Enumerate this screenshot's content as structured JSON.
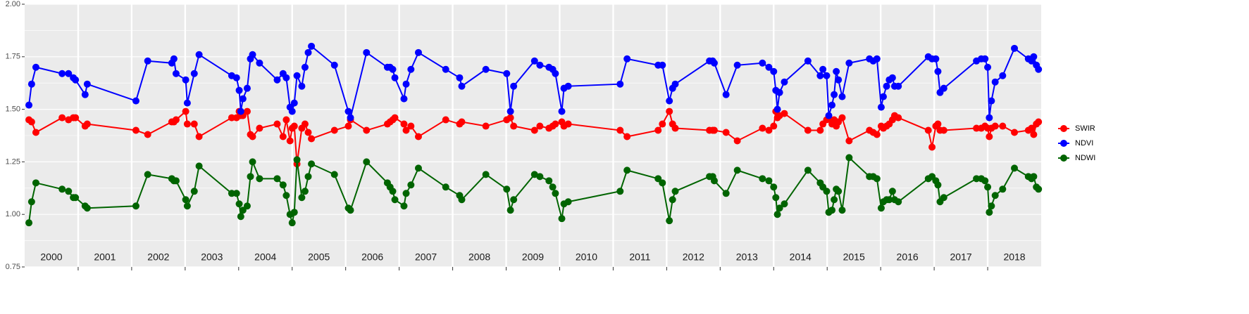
{
  "chart_data": {
    "type": "line",
    "xlim": [
      2000,
      2019
    ],
    "ylim": [
      0.75,
      2.0
    ],
    "yticks": [
      {
        "value": 0.75,
        "label": "0.75"
      },
      {
        "value": 1,
        "label": "1.00"
      },
      {
        "value": 1.25,
        "label": "1.25"
      },
      {
        "value": 1.5,
        "label": "1.50"
      },
      {
        "value": 1.75,
        "label": "1.75"
      },
      {
        "value": 2,
        "label": "2.00"
      }
    ],
    "yminor": [
      0.875,
      1.125,
      1.375,
      1.625,
      1.875
    ],
    "xticks": [
      {
        "value": 2000.5,
        "label": "2000"
      },
      {
        "value": 2001.5,
        "label": "2001"
      },
      {
        "value": 2002.5,
        "label": "2002"
      },
      {
        "value": 2003.5,
        "label": "2003"
      },
      {
        "value": 2004.5,
        "label": "2004"
      },
      {
        "value": 2005.5,
        "label": "2005"
      },
      {
        "value": 2006.5,
        "label": "2006"
      },
      {
        "value": 2007.5,
        "label": "2007"
      },
      {
        "value": 2008.5,
        "label": "2008"
      },
      {
        "value": 2009.5,
        "label": "2009"
      },
      {
        "value": 2010.5,
        "label": "2010"
      },
      {
        "value": 2011.5,
        "label": "2011"
      },
      {
        "value": 2012.5,
        "label": "2012"
      },
      {
        "value": 2013.5,
        "label": "2013"
      },
      {
        "value": 2014.5,
        "label": "2014"
      },
      {
        "value": 2015.5,
        "label": "2015"
      },
      {
        "value": 2016.5,
        "label": "2016"
      },
      {
        "value": 2017.5,
        "label": "2017"
      },
      {
        "value": 2018.5,
        "label": "2018"
      }
    ],
    "year_boundaries": [
      2001,
      2002,
      2003,
      2004,
      2005,
      2006,
      2007,
      2008,
      2009,
      2010,
      2011,
      2012,
      2013,
      2014,
      2015,
      2016,
      2017,
      2018
    ],
    "grid": true,
    "legend": "right",
    "x": [
      2000.08,
      2000.13,
      2000.21,
      2000.7,
      2000.82,
      2000.91,
      2000.95,
      2001.13,
      2001.17,
      2002.08,
      2002.3,
      2002.75,
      2002.79,
      2002.83,
      2003.01,
      2003.04,
      2003.17,
      2003.26,
      2003.87,
      2003.96,
      2004.01,
      2004.04,
      2004.08,
      2004.16,
      2004.22,
      2004.26,
      2004.39,
      2004.72,
      2004.83,
      2004.89,
      2004.96,
      2005.0,
      2005.04,
      2005.09,
      2005.18,
      2005.24,
      2005.3,
      2005.36,
      2005.79,
      2006.05,
      2006.09,
      2006.39,
      2006.78,
      2006.83,
      2006.88,
      2006.92,
      2007.09,
      2007.13,
      2007.22,
      2007.36,
      2007.87,
      2008.13,
      2008.17,
      2008.62,
      2009.01,
      2009.08,
      2009.14,
      2009.53,
      2009.63,
      2009.8,
      2009.87,
      2009.92,
      2010.04,
      2010.08,
      2010.16,
      2011.13,
      2011.26,
      2011.84,
      2011.92,
      2012.05,
      2012.11,
      2012.16,
      2012.8,
      2012.86,
      2012.89,
      2013.11,
      2013.32,
      2013.79,
      2013.91,
      2014.0,
      2014.04,
      2014.07,
      2014.11,
      2014.2,
      2014.64,
      2014.87,
      2014.92,
      2014.99,
      2015.03,
      2015.09,
      2015.13,
      2015.17,
      2015.21,
      2015.28,
      2015.41,
      2015.79,
      2015.86,
      2015.93,
      2016.01,
      2016.05,
      2016.11,
      2016.16,
      2016.22,
      2016.26,
      2016.33,
      2016.89,
      2016.96,
      2017.03,
      2017.07,
      2017.11,
      2017.18,
      2017.79,
      2017.88,
      2017.95,
      2018.0,
      2018.03,
      2018.07,
      2018.14,
      2018.28,
      2018.5,
      2018.76,
      2018.82,
      2018.86,
      2018.91,
      2018.95
    ],
    "series": [
      {
        "name": "SWIR",
        "color": "#ff0000",
        "values": [
          1.45,
          1.44,
          1.39,
          1.46,
          1.45,
          1.46,
          1.46,
          1.42,
          1.43,
          1.4,
          1.38,
          1.44,
          1.44,
          1.45,
          1.49,
          1.43,
          1.43,
          1.37,
          1.46,
          1.46,
          1.49,
          1.47,
          1.47,
          1.49,
          1.38,
          1.37,
          1.41,
          1.43,
          1.37,
          1.45,
          1.35,
          1.41,
          1.42,
          1.24,
          1.41,
          1.43,
          1.39,
          1.36,
          1.4,
          1.42,
          1.45,
          1.4,
          1.43,
          1.44,
          1.45,
          1.46,
          1.43,
          1.4,
          1.42,
          1.37,
          1.45,
          1.43,
          1.44,
          1.42,
          1.45,
          1.46,
          1.42,
          1.4,
          1.42,
          1.41,
          1.42,
          1.43,
          1.44,
          1.42,
          1.43,
          1.4,
          1.37,
          1.4,
          1.43,
          1.49,
          1.43,
          1.41,
          1.4,
          1.4,
          1.4,
          1.39,
          1.35,
          1.41,
          1.4,
          1.42,
          1.49,
          1.46,
          1.47,
          1.48,
          1.4,
          1.4,
          1.43,
          1.45,
          1.46,
          1.43,
          1.45,
          1.42,
          1.44,
          1.46,
          1.35,
          1.4,
          1.39,
          1.38,
          1.42,
          1.41,
          1.42,
          1.43,
          1.45,
          1.47,
          1.46,
          1.4,
          1.32,
          1.42,
          1.43,
          1.4,
          1.4,
          1.41,
          1.41,
          1.42,
          1.41,
          1.37,
          1.41,
          1.42,
          1.42,
          1.39,
          1.4,
          1.41,
          1.38,
          1.43,
          1.44
        ]
      },
      {
        "name": "NDVI",
        "color": "#0000ff",
        "values": [
          1.52,
          1.62,
          1.7,
          1.67,
          1.67,
          1.65,
          1.64,
          1.57,
          1.62,
          1.54,
          1.73,
          1.72,
          1.74,
          1.67,
          1.64,
          1.53,
          1.67,
          1.76,
          1.66,
          1.65,
          1.59,
          1.49,
          1.55,
          1.6,
          1.74,
          1.76,
          1.72,
          1.64,
          1.67,
          1.65,
          1.51,
          1.49,
          1.53,
          1.66,
          1.61,
          1.7,
          1.77,
          1.8,
          1.71,
          1.49,
          1.46,
          1.77,
          1.7,
          1.7,
          1.69,
          1.65,
          1.55,
          1.62,
          1.69,
          1.77,
          1.69,
          1.65,
          1.61,
          1.69,
          1.67,
          1.49,
          1.61,
          1.73,
          1.71,
          1.7,
          1.69,
          1.67,
          1.49,
          1.6,
          1.61,
          1.62,
          1.74,
          1.71,
          1.71,
          1.54,
          1.6,
          1.62,
          1.73,
          1.73,
          1.72,
          1.57,
          1.71,
          1.72,
          1.7,
          1.68,
          1.59,
          1.5,
          1.58,
          1.63,
          1.73,
          1.66,
          1.69,
          1.66,
          1.47,
          1.52,
          1.57,
          1.68,
          1.64,
          1.56,
          1.72,
          1.74,
          1.73,
          1.74,
          1.51,
          1.56,
          1.61,
          1.64,
          1.65,
          1.61,
          1.61,
          1.75,
          1.74,
          1.74,
          1.68,
          1.58,
          1.6,
          1.73,
          1.74,
          1.74,
          1.7,
          1.46,
          1.54,
          1.63,
          1.66,
          1.79,
          1.74,
          1.73,
          1.75,
          1.71,
          1.69
        ]
      },
      {
        "name": "NDWI",
        "color": "#006400",
        "values": [
          0.96,
          1.06,
          1.15,
          1.12,
          1.11,
          1.08,
          1.08,
          1.04,
          1.03,
          1.04,
          1.19,
          1.17,
          1.16,
          1.16,
          1.07,
          1.04,
          1.11,
          1.23,
          1.1,
          1.1,
          1.05,
          0.99,
          1.02,
          1.04,
          1.18,
          1.25,
          1.17,
          1.17,
          1.14,
          1.09,
          1.0,
          0.96,
          1.01,
          1.26,
          1.08,
          1.11,
          1.18,
          1.24,
          1.19,
          1.03,
          1.02,
          1.25,
          1.15,
          1.13,
          1.11,
          1.07,
          1.04,
          1.1,
          1.14,
          1.22,
          1.13,
          1.09,
          1.07,
          1.19,
          1.12,
          1.02,
          1.07,
          1.19,
          1.18,
          1.16,
          1.13,
          1.1,
          0.98,
          1.05,
          1.06,
          1.11,
          1.21,
          1.17,
          1.15,
          0.97,
          1.07,
          1.11,
          1.18,
          1.18,
          1.16,
          1.1,
          1.21,
          1.17,
          1.16,
          1.13,
          1.08,
          1.0,
          1.03,
          1.05,
          1.21,
          1.15,
          1.13,
          1.11,
          1.01,
          1.02,
          1.07,
          1.12,
          1.11,
          1.02,
          1.27,
          1.18,
          1.18,
          1.17,
          1.03,
          1.06,
          1.07,
          1.07,
          1.11,
          1.07,
          1.06,
          1.17,
          1.18,
          1.16,
          1.14,
          1.06,
          1.08,
          1.17,
          1.17,
          1.16,
          1.13,
          1.01,
          1.04,
          1.09,
          1.12,
          1.22,
          1.18,
          1.17,
          1.18,
          1.13,
          1.12
        ]
      }
    ]
  }
}
